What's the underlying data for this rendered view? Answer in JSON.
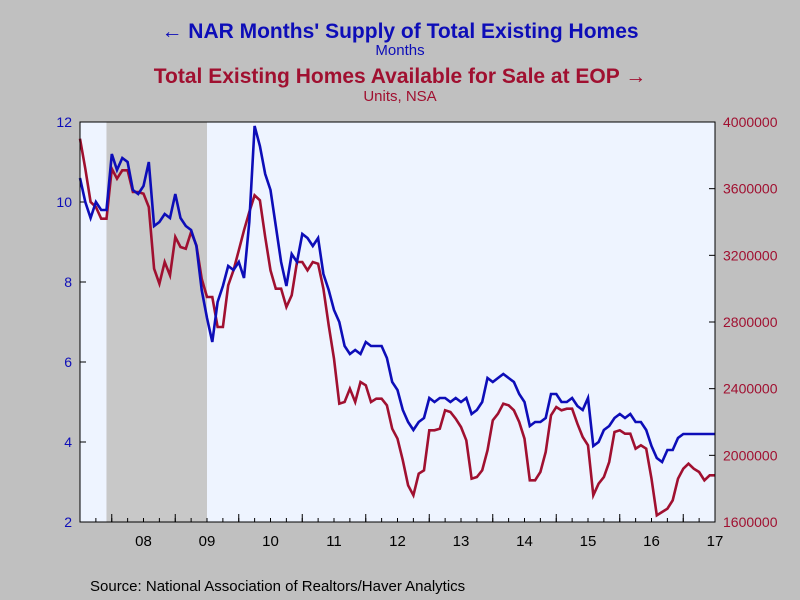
{
  "header": {
    "left_arrow": "←",
    "title_left": "NAR Months' Supply of Total Existing Homes",
    "unit_left": "Months",
    "title_right": "Total Existing Homes Available for Sale at EOP",
    "right_arrow": "→",
    "unit_right": "Units, NSA"
  },
  "footer": {
    "source": "Source:  National Association of Realtors/Haver Analytics"
  },
  "colors": {
    "left_series": "#0d0db8",
    "right_series": "#a01030",
    "plot_bg": "#eef4ff",
    "recession": "#c8c8c8"
  },
  "chart_data": {
    "type": "line",
    "x_tick_labels": [
      "08",
      "09",
      "10",
      "11",
      "12",
      "13",
      "14",
      "15",
      "16",
      "17"
    ],
    "x_start": "2007-07",
    "x_end": "2017-07",
    "recession_shading": {
      "start": "2007-12",
      "end": "2009-06"
    },
    "y_left": {
      "label": "Months",
      "ylim": [
        2,
        12
      ],
      "ticks": [
        2,
        4,
        6,
        8,
        10,
        12
      ]
    },
    "y_right": {
      "label": "Units, NSA",
      "ylim": [
        1600000,
        4000000
      ],
      "ticks": [
        1600000,
        2000000,
        2400000,
        2800000,
        3200000,
        3600000,
        4000000
      ]
    },
    "legend_position": "top",
    "series": [
      {
        "name": "NAR Months' Supply of Total Existing Homes",
        "axis": "left",
        "values": [
          10.6,
          10.0,
          9.6,
          10.0,
          9.8,
          9.8,
          11.2,
          10.8,
          11.1,
          11.0,
          10.3,
          10.2,
          10.4,
          11.0,
          9.4,
          9.5,
          9.7,
          9.6,
          10.2,
          9.6,
          9.4,
          9.3,
          8.9,
          7.8,
          7.1,
          6.5,
          7.5,
          7.9,
          8.4,
          8.3,
          8.5,
          8.1,
          9.5,
          11.9,
          11.4,
          10.7,
          10.3,
          9.4,
          8.5,
          7.9,
          8.7,
          8.5,
          9.2,
          9.1,
          8.9,
          9.1,
          8.2,
          7.8,
          7.3,
          7.0,
          6.4,
          6.2,
          6.3,
          6.2,
          6.5,
          6.4,
          6.4,
          6.4,
          6.1,
          5.5,
          5.3,
          4.8,
          4.5,
          4.3,
          4.5,
          4.6,
          5.1,
          5.0,
          5.1,
          5.1,
          5.0,
          5.1,
          5.0,
          5.1,
          4.7,
          4.8,
          5.0,
          5.6,
          5.5,
          5.6,
          5.7,
          5.6,
          5.5,
          5.2,
          5.0,
          4.4,
          4.5,
          4.5,
          4.6,
          5.2,
          5.2,
          5.0,
          5.0,
          5.1,
          4.9,
          4.8,
          5.1,
          3.9,
          4.0,
          4.3,
          4.4,
          4.6,
          4.7,
          4.6,
          4.7,
          4.5,
          4.5,
          4.3,
          3.9,
          3.6,
          3.5,
          3.8,
          3.8,
          4.1,
          4.2,
          4.2,
          4.2,
          4.2,
          4.2,
          4.2,
          4.2
        ]
      },
      {
        "name": "Total Existing Homes Available for Sale at EOP",
        "axis": "right",
        "values": [
          3900000,
          3720000,
          3520000,
          3490000,
          3420000,
          3420000,
          3720000,
          3660000,
          3710000,
          3710000,
          3580000,
          3580000,
          3570000,
          3490000,
          3120000,
          3030000,
          3160000,
          3080000,
          3310000,
          3250000,
          3240000,
          3340000,
          3260000,
          3060000,
          2950000,
          2950000,
          2770000,
          2770000,
          3020000,
          3110000,
          3230000,
          3350000,
          3460000,
          3560000,
          3530000,
          3310000,
          3110000,
          3000000,
          3000000,
          2890000,
          2960000,
          3160000,
          3160000,
          3110000,
          3160000,
          3150000,
          3000000,
          2780000,
          2580000,
          2310000,
          2320000,
          2400000,
          2320000,
          2440000,
          2420000,
          2320000,
          2340000,
          2340000,
          2300000,
          2160000,
          2100000,
          1970000,
          1820000,
          1760000,
          1890000,
          1910000,
          2150000,
          2150000,
          2160000,
          2270000,
          2260000,
          2220000,
          2170000,
          2090000,
          1860000,
          1870000,
          1910000,
          2030000,
          2210000,
          2250000,
          2310000,
          2300000,
          2270000,
          2200000,
          2100000,
          1850000,
          1850000,
          1900000,
          2020000,
          2240000,
          2290000,
          2270000,
          2280000,
          2280000,
          2190000,
          2110000,
          2060000,
          1760000,
          1830000,
          1870000,
          1960000,
          2140000,
          2150000,
          2130000,
          2130000,
          2040000,
          2060000,
          2040000,
          1860000,
          1640000,
          1660000,
          1680000,
          1730000,
          1860000,
          1920000,
          1950000,
          1920000,
          1900000,
          1850000,
          1880000,
          1880000
        ]
      }
    ]
  }
}
